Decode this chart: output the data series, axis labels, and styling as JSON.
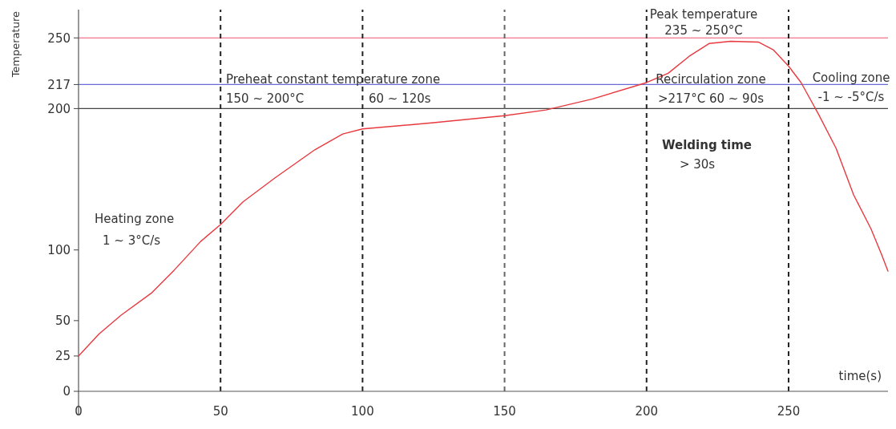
{
  "chart_data": {
    "type": "line",
    "xlabel": "time(s)",
    "ylabel": "Temperature",
    "x": [
      0,
      7.2,
      15,
      25.6,
      33.8,
      43,
      50,
      57.9,
      69.2,
      83.3,
      93,
      100,
      125,
      150,
      164.6,
      181,
      200,
      207.6,
      215,
      222,
      229.6,
      239.5,
      244.6,
      250,
      254.4,
      260.6,
      266.7,
      272.9,
      279,
      282.7,
      285
    ],
    "values": [
      25,
      40.6,
      53.9,
      69.4,
      86,
      106,
      118,
      134,
      151,
      171,
      182,
      185.6,
      190,
      195,
      199,
      206.8,
      218.4,
      225,
      237,
      246,
      247.6,
      247,
      241.6,
      230,
      218.4,
      195.8,
      172,
      139,
      115,
      97,
      85
    ],
    "color": "#e8393f",
    "xlim": [
      0,
      285
    ],
    "ylim": [
      0,
      270
    ],
    "xticks": [
      0,
      50,
      100,
      150,
      200,
      250
    ],
    "yticks": [
      0,
      25,
      50,
      100,
      200,
      217,
      250
    ],
    "ref_lines": [
      {
        "axis": "y",
        "value": 250,
        "color": "#f0506e",
        "line_style": "solid"
      },
      {
        "axis": "y",
        "value": 217,
        "color": "#6b6bd8",
        "line_style": "solid"
      },
      {
        "axis": "y",
        "value": 200,
        "color": "#444444",
        "line_style": "solid"
      },
      {
        "axis": "x",
        "value": 50,
        "color": "#222222",
        "line_style": "dashed"
      },
      {
        "axis": "x",
        "value": 100,
        "color": "#222222",
        "line_style": "dashed"
      },
      {
        "axis": "x",
        "value": 150,
        "color": "#666666",
        "line_style": "dashed"
      },
      {
        "axis": "x",
        "value": 200,
        "color": "#222222",
        "line_style": "dashed"
      },
      {
        "axis": "x",
        "value": 250,
        "color": "#222222",
        "line_style": "dashed"
      }
    ],
    "annotations": [
      "Heating zone",
      "1 ~ 3°C/s",
      "Preheat constant temperature zone",
      "150 ~ 200°C",
      "60 ~ 120s",
      "Peak temperature",
      "235 ~ 250°C",
      "Recirculation zone",
      ">217°C  60 ~ 90s",
      "Welding time",
      "> 30s",
      "Cooling zone",
      "-1 ~ -5°C/s"
    ]
  }
}
